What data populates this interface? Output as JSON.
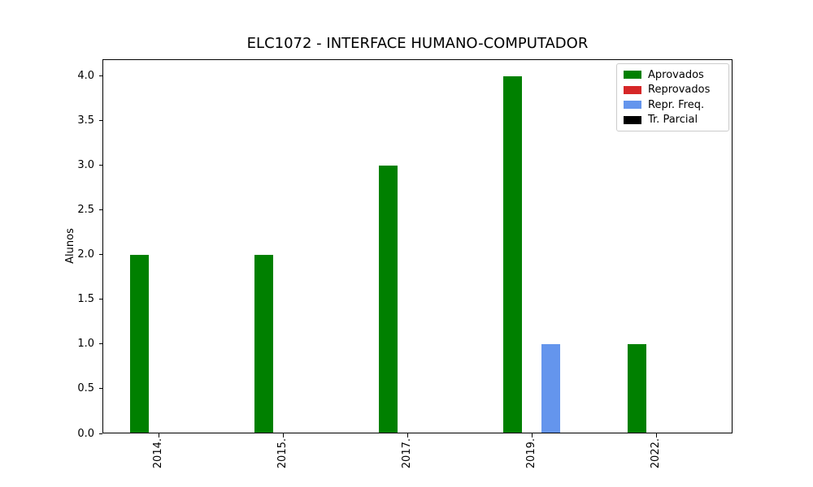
{
  "figure": {
    "background": "#ffffff",
    "text_color": "#000000",
    "axis_color": "#000000",
    "legend_border_color": "#cccccc"
  },
  "chart_data": {
    "type": "bar",
    "title": "ELC1072 - INTERFACE HUMANO-COMPUTADOR",
    "xlabel": "",
    "ylabel": "Alunos",
    "categories": [
      "2014.",
      "2015.",
      "2017.",
      "2019.",
      "2022."
    ],
    "series": [
      {
        "name": "Aprovados",
        "color": "#008000",
        "values": [
          2,
          2,
          3,
          4,
          1
        ]
      },
      {
        "name": "Reprovados",
        "color": "#d62728",
        "values": [
          0,
          0,
          0,
          0,
          0
        ]
      },
      {
        "name": "Repr. Freq.",
        "color": "#6495ed",
        "values": [
          0,
          0,
          0,
          1,
          0
        ]
      },
      {
        "name": "Tr. Parcial",
        "color": "#000000",
        "values": [
          0,
          0,
          0,
          0,
          0
        ]
      }
    ],
    "yticks": [
      "0.0",
      "0.5",
      "1.0",
      "1.5",
      "2.0",
      "2.5",
      "3.0",
      "3.5",
      "4.0"
    ],
    "ylim": [
      0,
      4.19
    ],
    "grid": false,
    "legend_position": "upper right",
    "bar_orientation": "vertical",
    "x_tick_rotation_deg": 90
  }
}
